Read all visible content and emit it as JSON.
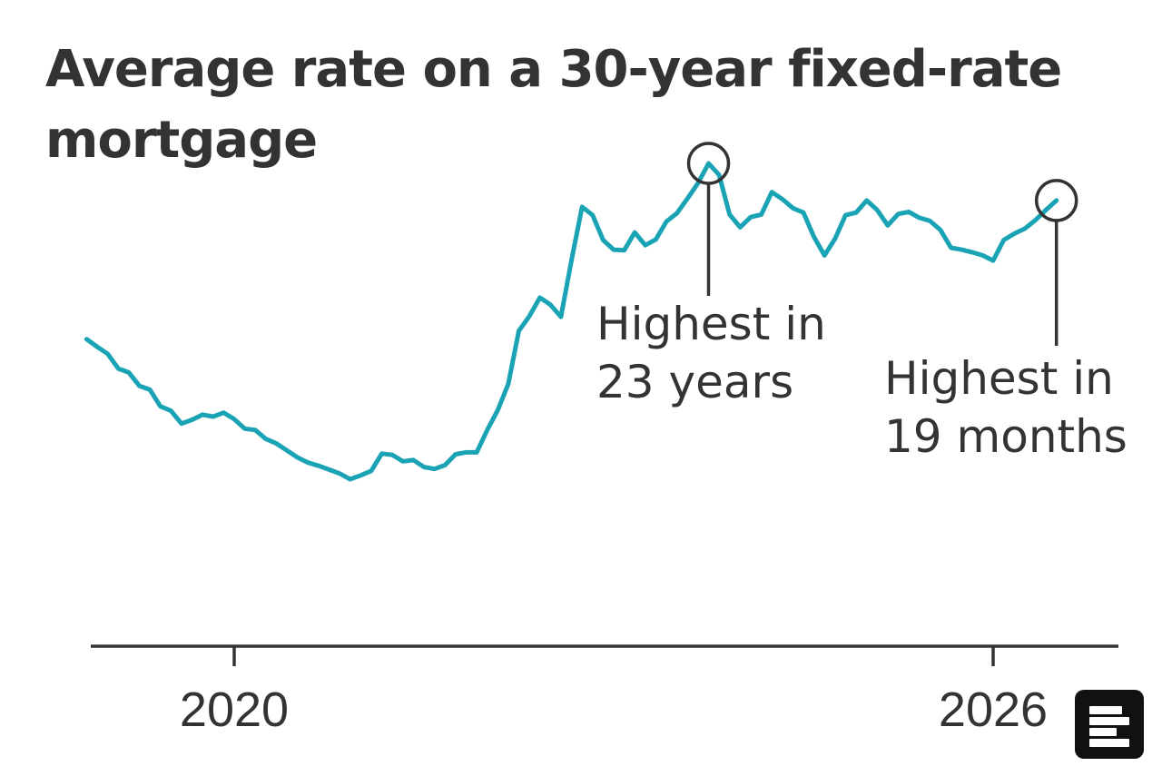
{
  "colors": {
    "series": "#1aa3b5",
    "text": "#333333",
    "axis": "#333333",
    "background": "#ffffff"
  },
  "chart_data": {
    "type": "line",
    "title": "Average rate on a 30-year fixed-rate mortgage",
    "xlabel": "",
    "ylabel": "",
    "grid": false,
    "legend": "none",
    "x_ticks": [
      "2020",
      "2026"
    ],
    "series": [
      {
        "name": "",
        "color": "#1aa3b5",
        "points": [
          [
            "2018-11",
            4.87
          ],
          [
            "2018-12",
            4.75
          ],
          [
            "2019-01",
            4.64
          ],
          [
            "2019-02",
            4.41
          ],
          [
            "2019-03",
            4.35
          ],
          [
            "2019-04",
            4.14
          ],
          [
            "2019-05",
            4.08
          ],
          [
            "2019-06",
            3.82
          ],
          [
            "2019-07",
            3.75
          ],
          [
            "2019-08",
            3.55
          ],
          [
            "2019-09",
            3.61
          ],
          [
            "2019-10",
            3.69
          ],
          [
            "2019-11",
            3.66
          ],
          [
            "2019-12",
            3.72
          ],
          [
            "2020-01",
            3.62
          ],
          [
            "2020-02",
            3.47
          ],
          [
            "2020-03",
            3.45
          ],
          [
            "2020-04",
            3.31
          ],
          [
            "2020-05",
            3.24
          ],
          [
            "2020-06",
            3.13
          ],
          [
            "2020-07",
            3.02
          ],
          [
            "2020-08",
            2.94
          ],
          [
            "2020-09",
            2.89
          ],
          [
            "2020-10",
            2.83
          ],
          [
            "2020-11",
            2.77
          ],
          [
            "2020-12",
            2.68
          ],
          [
            "2021-01",
            2.74
          ],
          [
            "2021-02",
            2.81
          ],
          [
            "2021-03",
            3.08
          ],
          [
            "2021-04",
            3.06
          ],
          [
            "2021-05",
            2.96
          ],
          [
            "2021-06",
            2.98
          ],
          [
            "2021-07",
            2.87
          ],
          [
            "2021-08",
            2.84
          ],
          [
            "2021-09",
            2.9
          ],
          [
            "2021-10",
            3.07
          ],
          [
            "2021-11",
            3.1
          ],
          [
            "2021-12",
            3.1
          ],
          [
            "2022-01",
            3.45
          ],
          [
            "2022-02",
            3.76
          ],
          [
            "2022-03",
            4.17
          ],
          [
            "2022-04",
            5.0
          ],
          [
            "2022-05",
            5.23
          ],
          [
            "2022-06",
            5.52
          ],
          [
            "2022-07",
            5.41
          ],
          [
            "2022-08",
            5.22
          ],
          [
            "2022-09",
            6.11
          ],
          [
            "2022-10",
            6.94
          ],
          [
            "2022-11",
            6.81
          ],
          [
            "2022-12",
            6.42
          ],
          [
            "2023-01",
            6.27
          ],
          [
            "2023-02",
            6.26
          ],
          [
            "2023-03",
            6.54
          ],
          [
            "2023-04",
            6.34
          ],
          [
            "2023-05",
            6.43
          ],
          [
            "2023-06",
            6.71
          ],
          [
            "2023-07",
            6.84
          ],
          [
            "2023-08",
            7.07
          ],
          [
            "2023-09",
            7.31
          ],
          [
            "2023-10",
            7.62
          ],
          [
            "2023-11",
            7.44
          ],
          [
            "2023-12",
            6.82
          ],
          [
            "2024-01",
            6.62
          ],
          [
            "2024-02",
            6.78
          ],
          [
            "2024-03",
            6.82
          ],
          [
            "2024-04",
            7.17
          ],
          [
            "2024-05",
            7.06
          ],
          [
            "2024-06",
            6.92
          ],
          [
            "2024-07",
            6.85
          ],
          [
            "2024-08",
            6.47
          ],
          [
            "2024-09",
            6.18
          ],
          [
            "2024-10",
            6.44
          ],
          [
            "2024-11",
            6.81
          ],
          [
            "2024-12",
            6.85
          ],
          [
            "2025-01",
            7.04
          ],
          [
            "2025-02",
            6.89
          ],
          [
            "2025-03",
            6.65
          ],
          [
            "2025-04",
            6.83
          ],
          [
            "2025-05",
            6.86
          ],
          [
            "2025-06",
            6.77
          ],
          [
            "2025-07",
            6.72
          ],
          [
            "2025-08",
            6.58
          ],
          [
            "2025-09",
            6.3
          ],
          [
            "2025-10",
            6.27
          ],
          [
            "2025-11",
            6.23
          ],
          [
            "2025-12",
            6.18
          ],
          [
            "2026-01",
            6.1
          ],
          [
            "2026-02",
            6.42
          ],
          [
            "2026-03",
            6.52
          ],
          [
            "2026-04",
            6.6
          ],
          [
            "2026-05",
            6.73
          ],
          [
            "2026-06",
            6.89
          ],
          [
            "2026-07",
            7.04
          ]
        ]
      }
    ],
    "annotations": [
      {
        "at": "2023-10",
        "lines": [
          "Highest in",
          "23 years"
        ]
      },
      {
        "at": "2026-07",
        "lines": [
          "Highest in",
          "19 months"
        ]
      }
    ]
  }
}
